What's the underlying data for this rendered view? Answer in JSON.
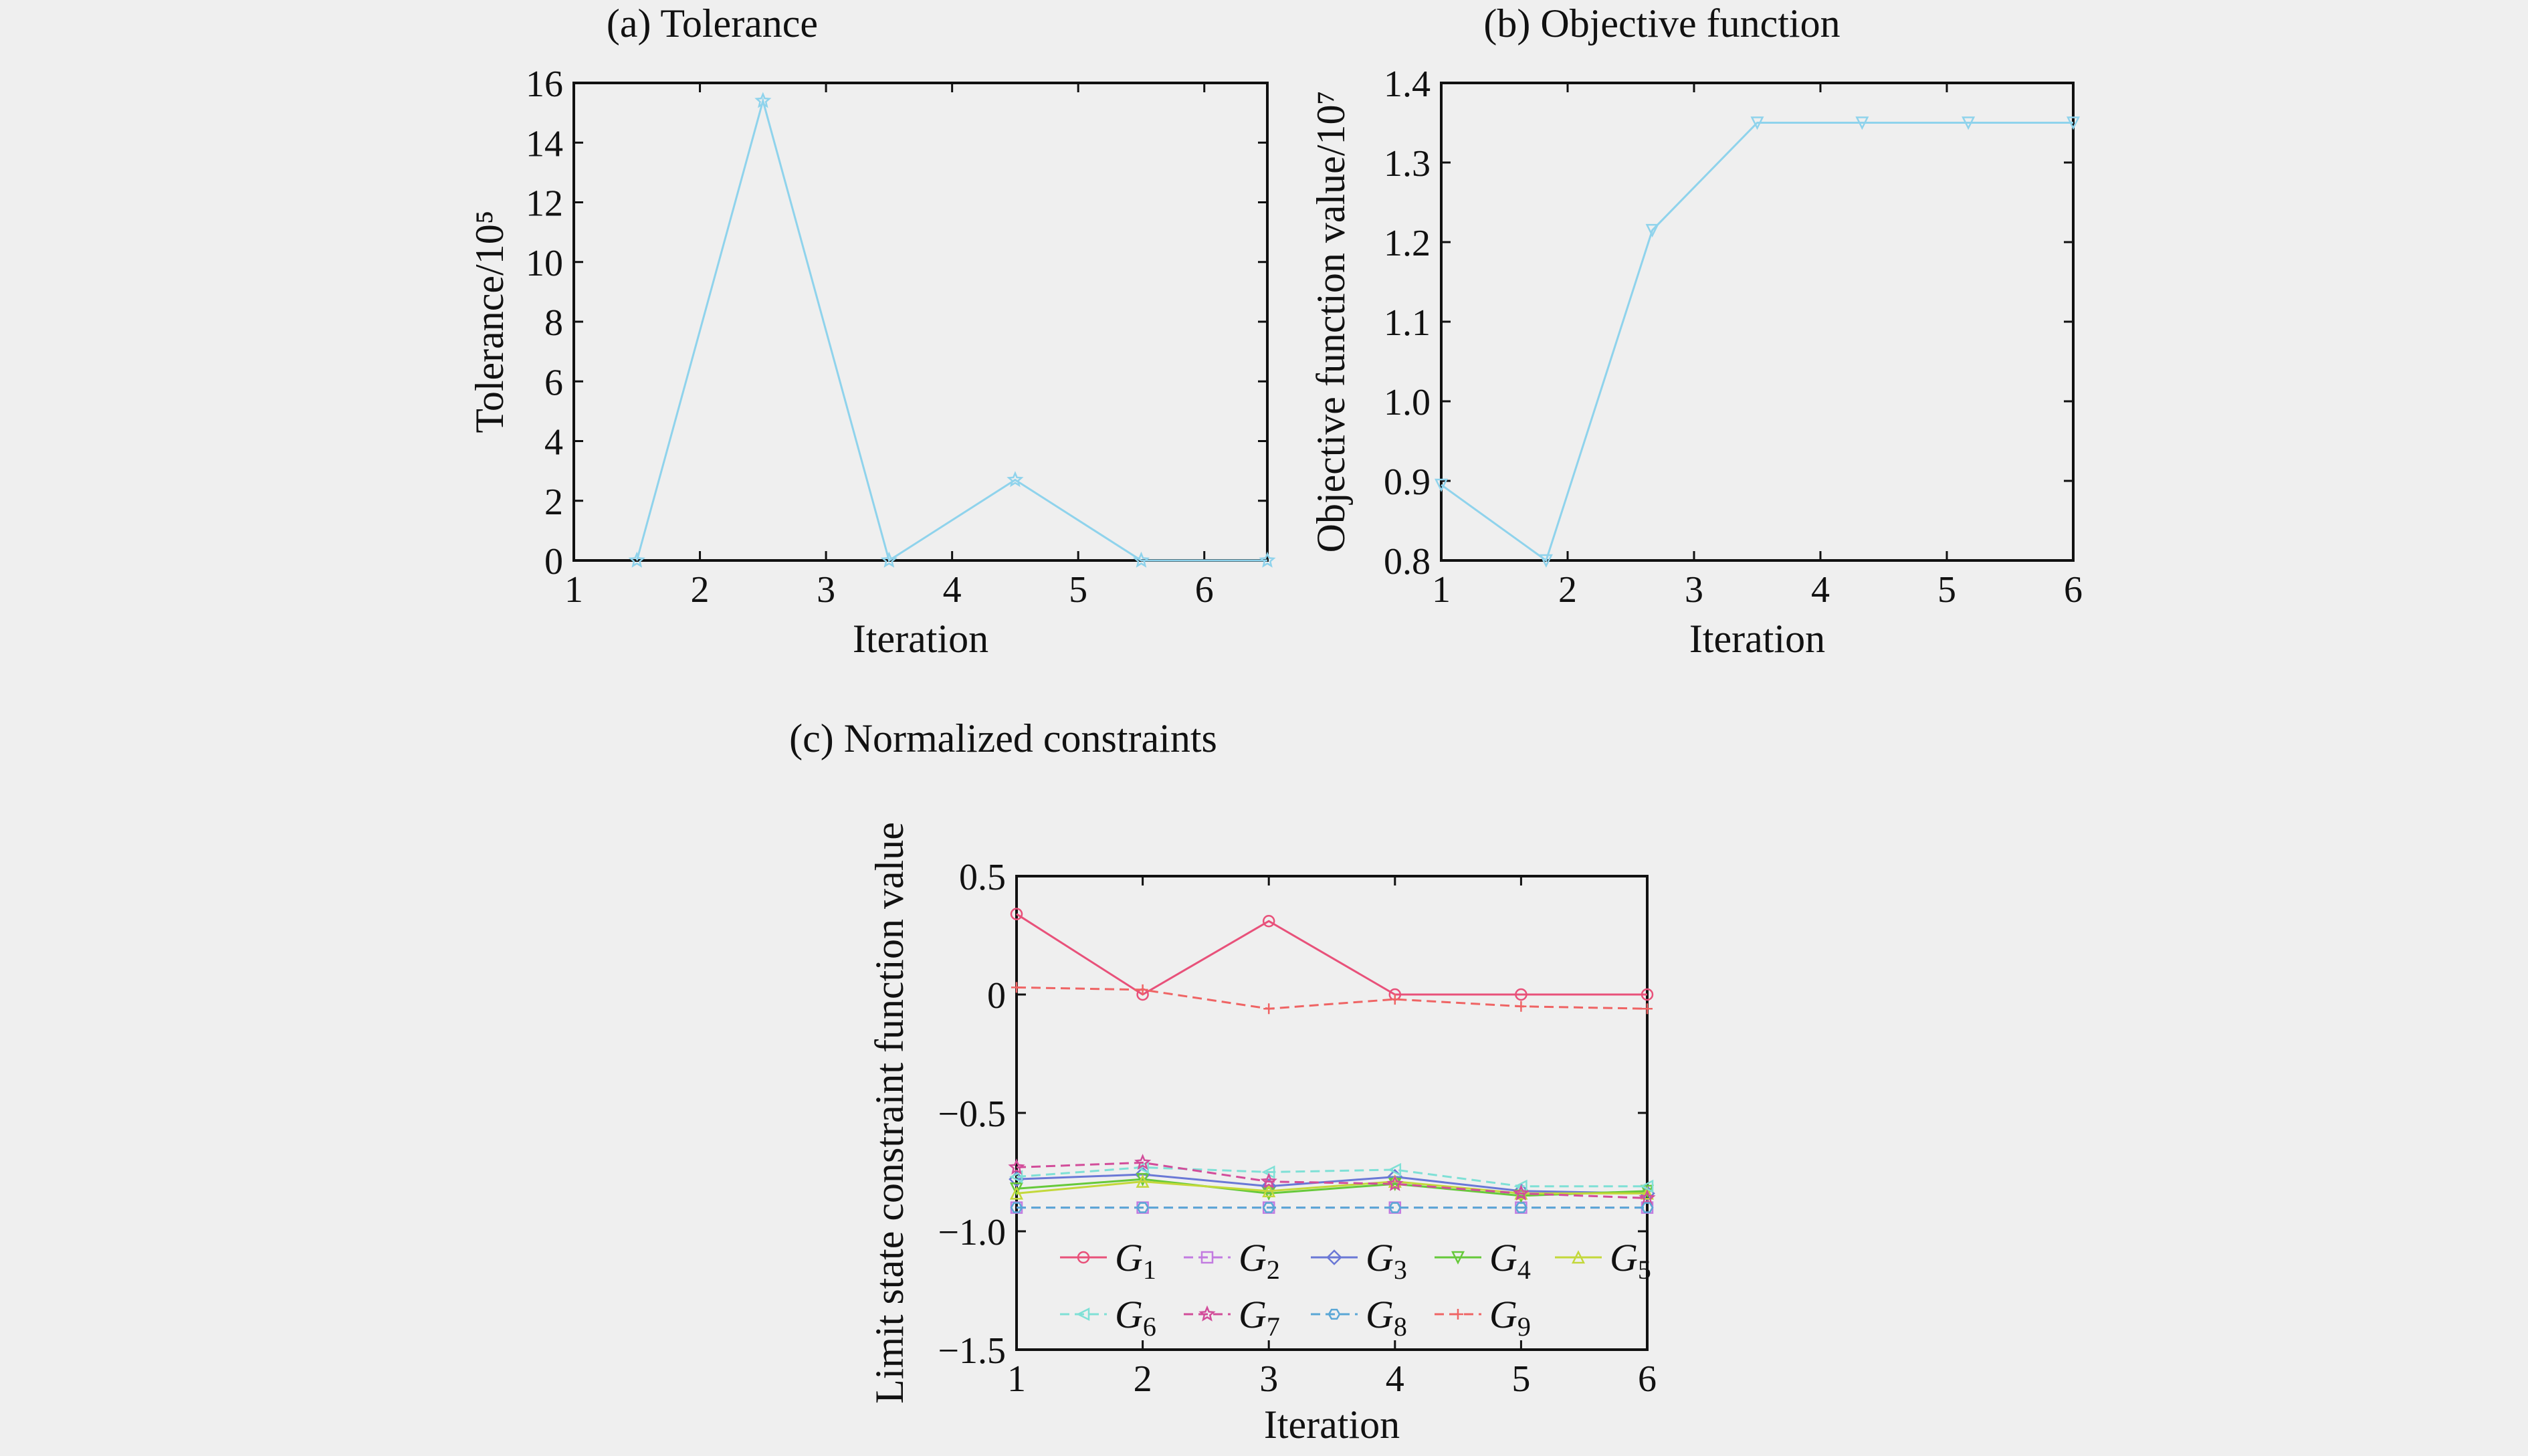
{
  "chart_data": [
    {
      "id": "a",
      "type": "line",
      "title": "(a) Tolerance",
      "xlabel": "Iteration",
      "ylabel": "Tolerance/10⁵",
      "xlim": [
        1,
        6.5
      ],
      "ylim": [
        0,
        16
      ],
      "xticks": [
        "1",
        "2",
        "3",
        "4",
        "5",
        "6"
      ],
      "yticks": [
        "0",
        "2",
        "4",
        "6",
        "8",
        "10",
        "12",
        "14",
        "16"
      ],
      "series": [
        {
          "color": "#8fd3ec",
          "marker": "star",
          "x": [
            1.5,
            2.5,
            3.5,
            4.5,
            5.5,
            6.5
          ],
          "y": [
            0,
            15.4,
            0,
            2.7,
            0,
            0
          ]
        }
      ]
    },
    {
      "id": "b",
      "type": "line",
      "title": "(b) Objective function",
      "xlabel": "Iteration",
      "ylabel": "Objective function value/10⁷",
      "xlim": [
        1,
        6
      ],
      "ylim": [
        0.8,
        1.4
      ],
      "xticks": [
        "1",
        "2",
        "3",
        "4",
        "5",
        "6"
      ],
      "yticks": [
        "0.8",
        "0.9",
        "1.0",
        "1.1",
        "1.2",
        "1.3",
        "1.4"
      ],
      "series": [
        {
          "color": "#8fd3ec",
          "marker": "triangle-down",
          "x": [
            1,
            1.83,
            2.67,
            3.5,
            4.33,
            5.17,
            6
          ],
          "y": [
            0.895,
            0.8,
            1.215,
            1.35,
            1.35,
            1.35,
            1.35
          ]
        }
      ]
    },
    {
      "id": "c",
      "type": "line",
      "title": "(c) Normalized constraints",
      "xlabel": "Iteration",
      "ylabel": "Limit state constraint function value",
      "xlim": [
        1,
        6
      ],
      "ylim": [
        -1.5,
        0.5
      ],
      "xticks": [
        "1",
        "2",
        "3",
        "4",
        "5",
        "6"
      ],
      "yticks": [
        "−1.5",
        "−1.0",
        "−0.5",
        "0",
        "0.5"
      ],
      "categories": [
        1,
        2,
        3,
        4,
        5,
        6
      ],
      "series": [
        {
          "name": "G",
          "sub": "1",
          "color": "#e8517a",
          "dash": "",
          "marker": "circle",
          "values": [
            0.34,
            0.0,
            0.31,
            0.0,
            0.0,
            0.0
          ]
        },
        {
          "name": "G",
          "sub": "2",
          "color": "#c27be0",
          "dash": "14,8",
          "marker": "square",
          "values": [
            -0.9,
            -0.9,
            -0.9,
            -0.9,
            -0.9,
            -0.9
          ]
        },
        {
          "name": "G",
          "sub": "3",
          "color": "#6a78d6",
          "dash": "",
          "marker": "diamond",
          "values": [
            -0.78,
            -0.76,
            -0.81,
            -0.77,
            -0.83,
            -0.84
          ]
        },
        {
          "name": "G",
          "sub": "4",
          "color": "#66c93a",
          "dash": "",
          "marker": "triangle-down",
          "values": [
            -0.82,
            -0.78,
            -0.84,
            -0.8,
            -0.85,
            -0.83
          ]
        },
        {
          "name": "G",
          "sub": "5",
          "color": "#c3d83a",
          "dash": "",
          "marker": "triangle-up",
          "values": [
            -0.84,
            -0.79,
            -0.83,
            -0.79,
            -0.84,
            -0.84
          ]
        },
        {
          "name": "G",
          "sub": "6",
          "color": "#7fe0d6",
          "dash": "14,8",
          "marker": "triangle-left",
          "values": [
            -0.77,
            -0.73,
            -0.75,
            -0.74,
            -0.81,
            -0.81
          ]
        },
        {
          "name": "G",
          "sub": "7",
          "color": "#d24d9a",
          "dash": "14,8",
          "marker": "star",
          "values": [
            -0.73,
            -0.71,
            -0.79,
            -0.8,
            -0.84,
            -0.86
          ]
        },
        {
          "name": "G",
          "sub": "8",
          "color": "#5aa7d6",
          "dash": "14,8",
          "marker": "hexagon",
          "values": [
            -0.9,
            -0.9,
            -0.9,
            -0.9,
            -0.9,
            -0.9
          ]
        },
        {
          "name": "G",
          "sub": "9",
          "color": "#ef6464",
          "dash": "14,8",
          "marker": "plus",
          "values": [
            0.03,
            0.02,
            -0.06,
            -0.02,
            -0.05,
            -0.06
          ]
        }
      ],
      "legend_placement": "lower-center"
    }
  ]
}
